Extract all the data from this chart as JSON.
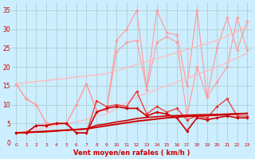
{
  "xlabel": "Vent moyen/en rafales ( km/h )",
  "xlabel_color": "#cc0000",
  "bg_color": "#cceeff",
  "grid_color": "#b0d0d0",
  "x": [
    0,
    1,
    2,
    3,
    4,
    5,
    6,
    7,
    8,
    9,
    10,
    11,
    12,
    13,
    14,
    15,
    16,
    17,
    18,
    19,
    20,
    21,
    22,
    23
  ],
  "ylim": [
    0,
    37
  ],
  "yticks": [
    0,
    5,
    10,
    15,
    20,
    25,
    30,
    35
  ],
  "series": [
    {
      "name": "rafales_jagged1",
      "color": "#ff9999",
      "lw": 0.8,
      "marker": "D",
      "ms": 1.8,
      "y": [
        15.5,
        11.5,
        10.0,
        5.0,
        5.0,
        5.0,
        10.0,
        15.5,
        8.5,
        8.5,
        27.0,
        30.0,
        35.0,
        14.0,
        35.0,
        29.0,
        28.5,
        15.0,
        35.0,
        12.0,
        25.0,
        33.0,
        24.5,
        32.0
      ]
    },
    {
      "name": "rafales_jagged2",
      "color": "#ff9999",
      "lw": 0.8,
      "marker": "D",
      "ms": 1.8,
      "y": [
        15.5,
        11.5,
        10.0,
        5.0,
        5.0,
        5.0,
        10.0,
        15.5,
        8.5,
        8.5,
        24.0,
        26.5,
        27.0,
        14.0,
        26.5,
        28.0,
        26.5,
        7.0,
        20.0,
        12.0,
        16.0,
        20.0,
        33.0,
        24.5
      ]
    },
    {
      "name": "trend_upper1",
      "color": "#ffbbbb",
      "lw": 1.0,
      "marker": null,
      "ms": 0,
      "y": [
        15.5,
        15.8,
        16.1,
        16.4,
        16.7,
        17.0,
        17.3,
        17.6,
        17.9,
        18.2,
        19.0,
        19.8,
        20.6,
        21.4,
        22.2,
        23.0,
        23.8,
        24.6,
        25.4,
        26.2,
        27.0,
        28.2,
        29.4,
        30.6
      ]
    },
    {
      "name": "trend_upper2",
      "color": "#ffbbbb",
      "lw": 0.9,
      "marker": null,
      "ms": 0,
      "y": [
        2.5,
        3.0,
        3.5,
        4.0,
        4.5,
        5.0,
        5.5,
        6.0,
        7.0,
        7.5,
        9.0,
        10.5,
        12.0,
        13.0,
        14.0,
        15.0,
        16.0,
        17.0,
        18.0,
        19.0,
        20.0,
        21.2,
        22.4,
        23.6
      ]
    },
    {
      "name": "moyen_jagged1",
      "color": "#ee3333",
      "lw": 0.9,
      "marker": "D",
      "ms": 1.8,
      "y": [
        2.5,
        2.5,
        4.5,
        4.5,
        5.0,
        5.0,
        2.5,
        2.5,
        11.0,
        9.5,
        10.0,
        9.5,
        13.5,
        7.5,
        9.5,
        8.0,
        9.0,
        6.0,
        7.0,
        6.5,
        9.5,
        11.5,
        7.0,
        7.0
      ]
    },
    {
      "name": "moyen_jagged2",
      "color": "#cc0000",
      "lw": 1.2,
      "marker": "D",
      "ms": 1.8,
      "y": [
        2.5,
        2.5,
        4.5,
        4.5,
        5.0,
        5.0,
        2.5,
        2.5,
        8.0,
        9.0,
        9.5,
        9.0,
        9.0,
        7.0,
        8.0,
        7.5,
        6.5,
        3.0,
        6.5,
        6.0,
        6.5,
        7.0,
        6.5,
        6.5
      ]
    },
    {
      "name": "trend_lower1",
      "color": "#cc0000",
      "lw": 1.4,
      "marker": null,
      "ms": 0,
      "y": [
        2.5,
        2.65,
        2.8,
        2.95,
        3.1,
        3.25,
        3.4,
        3.55,
        4.0,
        4.4,
        4.8,
        5.2,
        5.6,
        5.9,
        6.2,
        6.5,
        6.7,
        6.9,
        7.0,
        7.1,
        7.2,
        7.35,
        7.5,
        7.65
      ]
    },
    {
      "name": "trend_lower2",
      "color": "#cc0000",
      "lw": 1.2,
      "marker": null,
      "ms": 0,
      "y": [
        2.5,
        2.6,
        2.7,
        2.8,
        3.0,
        3.2,
        3.4,
        3.6,
        4.5,
        4.9,
        5.4,
        5.8,
        6.3,
        6.6,
        6.8,
        7.0,
        7.1,
        7.2,
        7.3,
        7.35,
        7.4,
        7.5,
        7.6,
        7.7
      ]
    }
  ]
}
